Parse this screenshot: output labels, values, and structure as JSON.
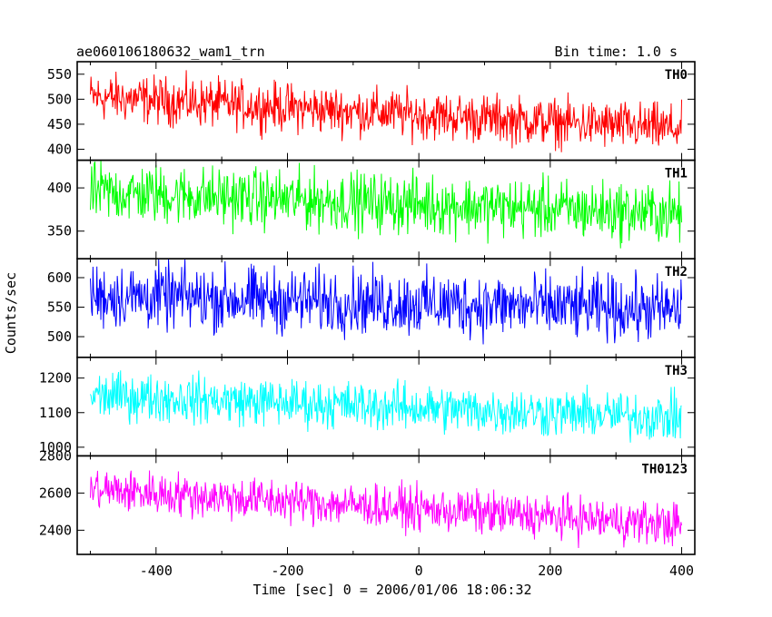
{
  "header": {
    "title": "ae060106180632_wam1_trn",
    "bin_time": "Bin time: 1.0 s"
  },
  "colors": {
    "TH0": "#ff0000",
    "TH1": "#00ff00",
    "TH2": "#0000ff",
    "TH3": "#00ffff",
    "TH0123": "#ff00ff"
  },
  "chart_data": {
    "type": "line",
    "title": "ae060106180632_wam1_trn",
    "subtitle": "Bin time: 1.0 s",
    "xlabel": "Time [sec] 0 = 2006/01/06 18:06:32",
    "ylabel": "Counts/sec",
    "xlim": [
      -520,
      420
    ],
    "x_ticks": [
      -400,
      -200,
      0,
      200,
      400
    ],
    "x_range": [
      -500,
      400
    ],
    "bin_seconds": 1.0,
    "grid": false,
    "panels": [
      {
        "name": "TH0",
        "color": "#ff0000",
        "ylim": [
          378,
          575
        ],
        "y_ticks": [
          400,
          450,
          500,
          550
        ],
        "trend_start": 505,
        "trend_end": 440,
        "noise_amplitude": 35
      },
      {
        "name": "TH1",
        "color": "#00ff00",
        "ylim": [
          318,
          432
        ],
        "y_ticks": [
          350,
          400
        ],
        "trend_start": 395,
        "trend_end": 370,
        "noise_amplitude": 25
      },
      {
        "name": "TH2",
        "color": "#0000ff",
        "ylim": [
          465,
          632
        ],
        "y_ticks": [
          500,
          550,
          600
        ],
        "trend_start": 570,
        "trend_end": 545,
        "noise_amplitude": 40
      },
      {
        "name": "TH3",
        "color": "#00ffff",
        "ylim": [
          975,
          1260
        ],
        "y_ticks": [
          1000,
          1100,
          1200
        ],
        "trend_start": 1150,
        "trend_end": 1085,
        "noise_amplitude": 50
      },
      {
        "name": "TH0123",
        "color": "#ff00ff",
        "ylim": [
          2270,
          2800
        ],
        "y_ticks": [
          2400,
          2600,
          2800
        ],
        "trend_start": 2620,
        "trend_end": 2430,
        "noise_amplitude": 85
      }
    ]
  }
}
